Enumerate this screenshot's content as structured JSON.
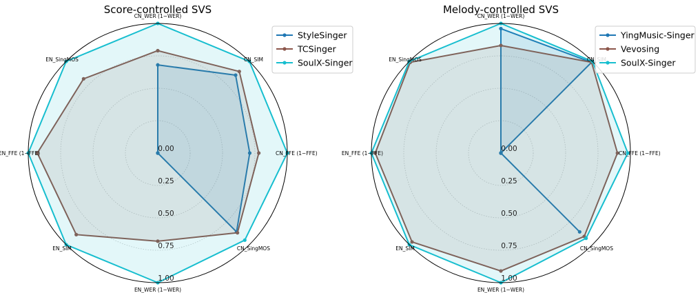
{
  "chart_data": [
    {
      "type": "radar",
      "title": "Score-controlled SVS",
      "axes": [
        "CN_WER (1−WER)",
        "CN_SIM",
        "CN_FFE (1−FFE)",
        "CN_SingMOS",
        "EN_WER (1−WER)",
        "EN_SIM",
        "EN_FFE (1−FFE)",
        "EN_SingMOS"
      ],
      "radial_ticks": [
        "0.00",
        "0.25",
        "0.50",
        "0.75",
        "1.00"
      ],
      "rlim": [
        0,
        1
      ],
      "grid": true,
      "legend_position": "top-right",
      "series": [
        {
          "name": "StyleSinger",
          "color": "#1f77b4",
          "values": [
            0.68,
            0.85,
            0.71,
            0.86,
            0.0,
            0.0,
            0.0,
            0.0
          ]
        },
        {
          "name": "TCSinger",
          "color": "#8c564b",
          "values": [
            0.79,
            0.89,
            0.78,
            0.87,
            0.68,
            0.89,
            0.93,
            0.81
          ]
        },
        {
          "name": "SoulX-Singer",
          "color": "#17becf",
          "values": [
            1.0,
            1.0,
            1.0,
            0.95,
            1.0,
            1.0,
            1.0,
            1.0
          ]
        }
      ]
    },
    {
      "type": "radar",
      "title": "Melody-controlled SVS",
      "axes": [
        "CN_WER (1−WER)",
        "CN_SIM",
        "CN_FFE (1−FFE)",
        "CN_SingMOS",
        "EN_WER (1−WER)",
        "EN_SIM",
        "EN_FFE (1−FFE)",
        "EN_SingMOS"
      ],
      "radial_ticks": [
        "0.00",
        "0.25",
        "0.50",
        "0.75",
        "1.00"
      ],
      "rlim": [
        0,
        1
      ],
      "grid": true,
      "legend_position": "top-right",
      "series": [
        {
          "name": "YingMusic-Singer",
          "color": "#1f77b4",
          "values": [
            0.96,
            0.99,
            0.0,
            0.86,
            0.0,
            0.0,
            0.0,
            0.0
          ]
        },
        {
          "name": "Vevosing",
          "color": "#8c564b",
          "values": [
            0.83,
            0.99,
            0.9,
            0.91,
            0.91,
            0.97,
            0.97,
            0.99
          ]
        },
        {
          "name": "SoulX-Singer",
          "color": "#17becf",
          "values": [
            1.0,
            1.0,
            0.98,
            0.93,
            1.0,
            1.0,
            1.0,
            1.0
          ]
        }
      ]
    }
  ]
}
